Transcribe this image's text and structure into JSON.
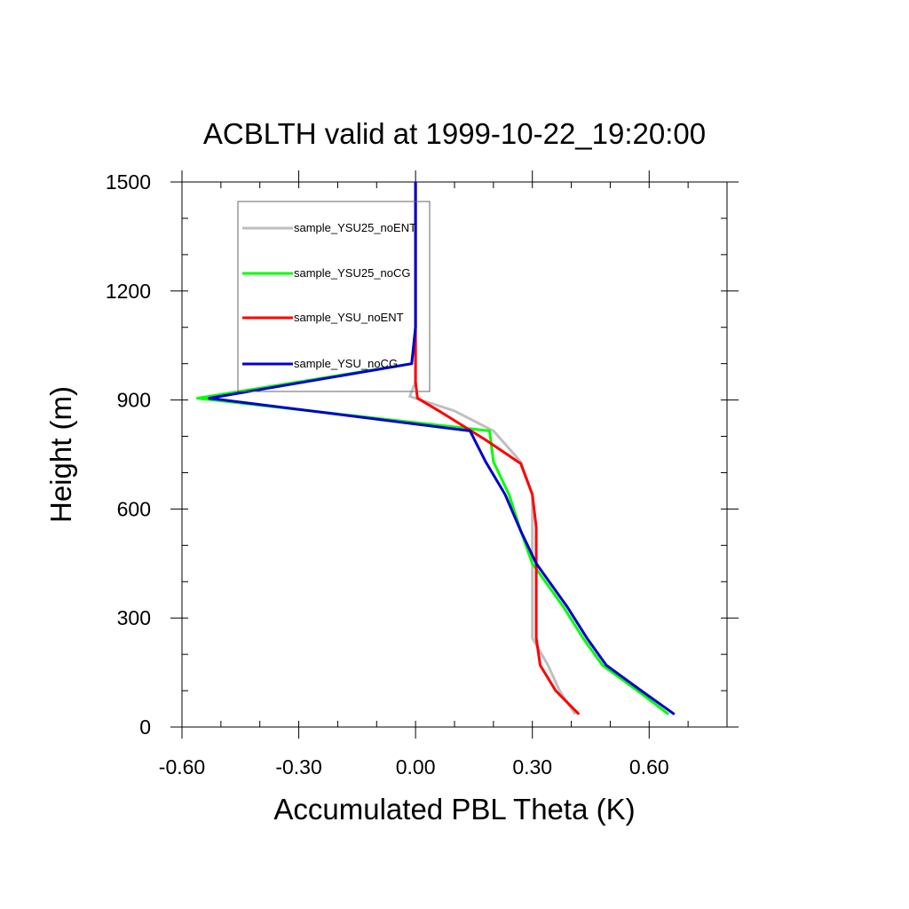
{
  "chart_data": {
    "type": "line",
    "title": "ACBLTH valid at 1999-10-22_19:20:00",
    "xlabel": "Accumulated PBL Theta (K)",
    "ylabel": "Height (m)",
    "xlim": [
      -0.6,
      0.8
    ],
    "ylim": [
      0,
      1500
    ],
    "xticks": [
      -0.6,
      -0.3,
      0.0,
      0.3,
      0.6
    ],
    "xtick_labels": [
      "-0.60",
      "-0.30",
      "0.00",
      "0.30",
      "0.60"
    ],
    "yticks": [
      0,
      300,
      600,
      900,
      1200,
      1500
    ],
    "ytick_labels": [
      "0",
      "300",
      "600",
      "900",
      "1200",
      "1500"
    ],
    "grid": false,
    "legend_position": "top-left",
    "series": [
      {
        "name": "sample_YSU25_noENT",
        "color": "#bfbfbf",
        "points": [
          [
            0.41,
            35
          ],
          [
            0.37,
            100
          ],
          [
            0.34,
            170
          ],
          [
            0.3,
            245
          ],
          [
            0.3,
            330
          ],
          [
            0.3,
            450
          ],
          [
            0.3,
            540
          ],
          [
            0.3,
            640
          ],
          [
            0.27,
            730
          ],
          [
            0.2,
            815
          ],
          [
            0.1,
            870
          ],
          [
            -0.015,
            910
          ],
          [
            0.0,
            950
          ],
          [
            0.0,
            1000
          ],
          [
            0.0,
            1100
          ],
          [
            0.0,
            1300
          ],
          [
            0.0,
            1500
          ]
        ]
      },
      {
        "name": "sample_YSU25_noCG",
        "color": "#00ff00",
        "points": [
          [
            0.65,
            35
          ],
          [
            0.57,
            100
          ],
          [
            0.48,
            170
          ],
          [
            0.43,
            245
          ],
          [
            0.38,
            330
          ],
          [
            0.3,
            450
          ],
          [
            0.27,
            540
          ],
          [
            0.24,
            640
          ],
          [
            0.2,
            730
          ],
          [
            0.19,
            815
          ],
          [
            -0.56,
            905
          ],
          [
            -0.01,
            1000
          ],
          [
            0.0,
            1100
          ],
          [
            0.0,
            1300
          ],
          [
            0.0,
            1500
          ]
        ]
      },
      {
        "name": "sample_YSU_noENT",
        "color": "#ff0000",
        "points": [
          [
            0.42,
            35
          ],
          [
            0.36,
            100
          ],
          [
            0.32,
            170
          ],
          [
            0.31,
            245
          ],
          [
            0.31,
            330
          ],
          [
            0.31,
            450
          ],
          [
            0.31,
            550
          ],
          [
            0.3,
            640
          ],
          [
            0.27,
            725
          ],
          [
            0.18,
            790
          ],
          [
            0.06,
            870
          ],
          [
            0.005,
            905
          ],
          [
            0.0,
            950
          ],
          [
            0.0,
            1000
          ],
          [
            0.0,
            1100
          ],
          [
            0.0,
            1300
          ],
          [
            0.0,
            1500
          ]
        ]
      },
      {
        "name": "sample_YSU_noCG",
        "color": "#0000cc",
        "points": [
          [
            0.665,
            35
          ],
          [
            0.58,
            100
          ],
          [
            0.49,
            170
          ],
          [
            0.44,
            245
          ],
          [
            0.39,
            330
          ],
          [
            0.31,
            450
          ],
          [
            0.27,
            540
          ],
          [
            0.23,
            640
          ],
          [
            0.18,
            730
          ],
          [
            0.14,
            815
          ],
          [
            -0.53,
            905
          ],
          [
            -0.01,
            1000
          ],
          [
            0.0,
            1100
          ],
          [
            0.0,
            1300
          ],
          [
            0.0,
            1500
          ]
        ]
      }
    ]
  }
}
